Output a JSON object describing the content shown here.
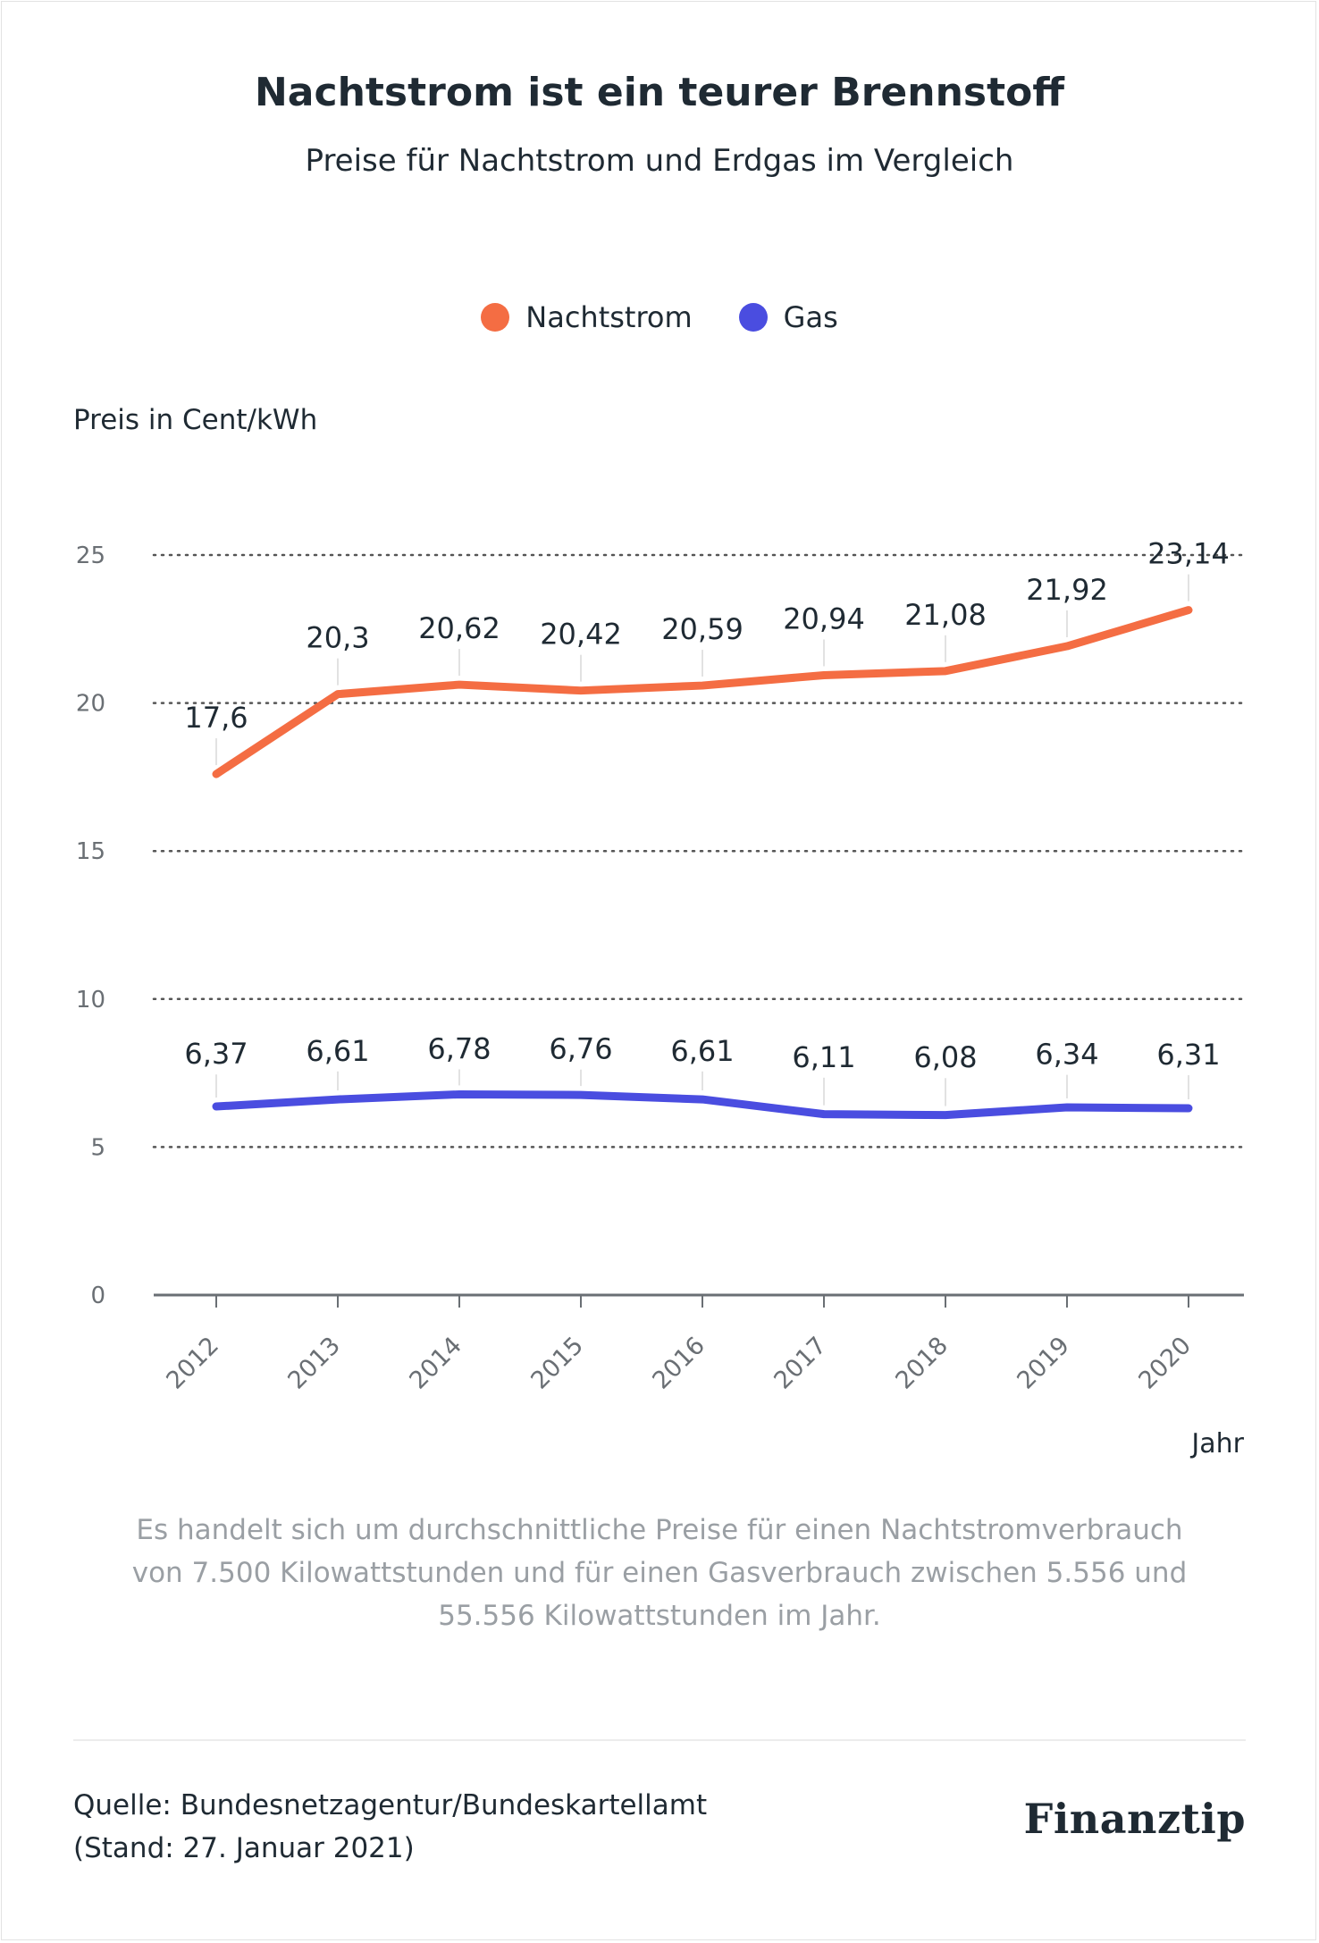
{
  "title": "Nachtstrom ist ein teurer Brennstoff",
  "subtitle": "Preise für Nachtstrom und Erdgas im Vergleich",
  "legend": {
    "nachtstrom": "Nachtstrom",
    "gas": "Gas"
  },
  "ylabel": "Preis in Cent/kWh",
  "xlabel": "Jahr",
  "note": "Es handelt sich um durchschnittliche Preise für einen Nachtstromverbrauch von 7.500 Kilowattstunden und für einen Gasverbrauch zwischen 5.556 und 55.556 Kilowattstunden im Jahr.",
  "source_line1": "Quelle: Bundesnetzagentur/Bundeskartellamt",
  "source_line2": "(Stand: 27. Januar 2021)",
  "logo": "Finanztip",
  "colors": {
    "nachtstrom": "#f46d43",
    "gas": "#4a4de0"
  },
  "chart_data": {
    "type": "line",
    "x": [
      "2012",
      "2013",
      "2014",
      "2015",
      "2016",
      "2017",
      "2018",
      "2019",
      "2020"
    ],
    "ylim": [
      0,
      25
    ],
    "yticks": [
      "0",
      "5",
      "10",
      "15",
      "20",
      "25"
    ],
    "grid": "horizontal dotted",
    "legend_position": "top-center",
    "series": [
      {
        "name": "Nachtstrom",
        "values": [
          17.6,
          20.3,
          20.62,
          20.42,
          20.59,
          20.94,
          21.08,
          21.92,
          23.14
        ],
        "labels": [
          "17,6",
          "20,3",
          "20,62",
          "20,42",
          "20,59",
          "20,94",
          "21,08",
          "21,92",
          "23,14"
        ]
      },
      {
        "name": "Gas",
        "values": [
          6.37,
          6.61,
          6.78,
          6.76,
          6.61,
          6.11,
          6.08,
          6.34,
          6.31
        ],
        "labels": [
          "6,37",
          "6,61",
          "6,78",
          "6,76",
          "6,61",
          "6,11",
          "6,08",
          "6,34",
          "6,31"
        ]
      }
    ]
  }
}
